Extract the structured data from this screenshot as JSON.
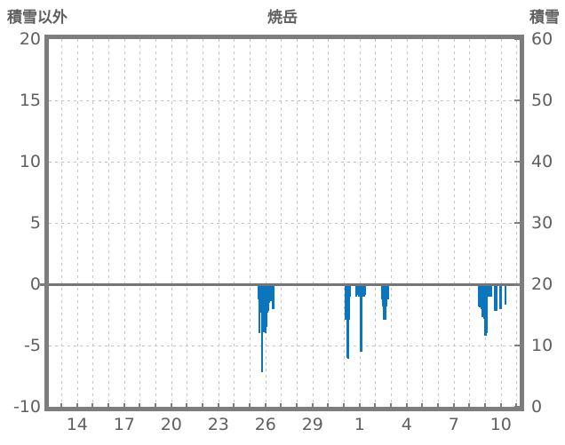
{
  "header": {
    "left_axis_title": "積雪以外",
    "title": "焼岳",
    "right_axis_title": "積雪"
  },
  "colors": {
    "bar": "#0b76be",
    "frame": "#7d7d7d",
    "zero_line": "#757575",
    "grid": "#c4c4c4",
    "text": "#5f5f5f",
    "background": "#ffffff"
  },
  "chart_data": {
    "type": "bar",
    "title": "焼岳",
    "left_axis": {
      "label": "積雪以外",
      "tick_labels": [
        "20",
        "15",
        "10",
        "5",
        "0",
        "-5",
        "-10"
      ],
      "tick_values": [
        20,
        15,
        10,
        5,
        0,
        -5,
        -10
      ],
      "range": [
        -10,
        20
      ]
    },
    "right_axis": {
      "label": "積雪",
      "tick_labels": [
        "60",
        "50",
        "40",
        "30",
        "20",
        "10",
        "0"
      ],
      "tick_values": [
        60,
        50,
        40,
        30,
        20,
        10,
        0
      ],
      "range": [
        0,
        60
      ]
    },
    "x_axis": {
      "tick_labels": [
        "14",
        "17",
        "20",
        "23",
        "26",
        "29",
        "1",
        "4",
        "7",
        "10"
      ],
      "tick_positions_day": [
        14,
        17,
        20,
        23,
        26,
        29,
        32,
        35,
        38,
        41
      ],
      "window_days": [
        12.2,
        42.2
      ],
      "gridlines": "daily",
      "x_unit": "day index (32 = day 1 of following month)"
    },
    "grid": "dashed",
    "legend": "none",
    "zero_line": true,
    "series": [
      {
        "name": "積雪以外",
        "color": "#0b76be",
        "points": [
          [
            25.55,
            -1.2
          ],
          [
            25.61,
            -4.0
          ],
          [
            25.67,
            -2.2
          ],
          [
            25.73,
            -2.3
          ],
          [
            25.78,
            -7.2
          ],
          [
            25.84,
            -2.3
          ],
          [
            25.9,
            -3.9
          ],
          [
            25.96,
            -2.4
          ],
          [
            26.02,
            -4.0
          ],
          [
            26.08,
            -3.5
          ],
          [
            26.14,
            -2.3
          ],
          [
            26.2,
            -2.2
          ],
          [
            26.26,
            -1.5
          ],
          [
            26.32,
            -1.4
          ],
          [
            26.45,
            -2.0
          ],
          [
            26.5,
            -2.0
          ],
          [
            31.1,
            -2.9
          ],
          [
            31.16,
            -2.9
          ],
          [
            31.22,
            -6.0
          ],
          [
            31.28,
            -6.1
          ],
          [
            31.34,
            -2.9
          ],
          [
            31.4,
            -1.0
          ],
          [
            31.78,
            -1.0
          ],
          [
            31.84,
            -0.9
          ],
          [
            31.97,
            -1.0
          ],
          [
            32.03,
            -1.0
          ],
          [
            32.1,
            -5.5
          ],
          [
            32.16,
            -1.0
          ],
          [
            32.28,
            -1.0
          ],
          [
            32.34,
            -0.9
          ],
          [
            33.45,
            -1.2
          ],
          [
            33.51,
            -1.8
          ],
          [
            33.57,
            -2.9
          ],
          [
            33.63,
            -2.9
          ],
          [
            33.69,
            -1.8
          ],
          [
            33.75,
            -1.2
          ],
          [
            33.81,
            -1.2
          ],
          [
            39.59,
            -1.8
          ],
          [
            39.65,
            -1.9
          ],
          [
            39.71,
            -1.9
          ],
          [
            39.77,
            -2.0
          ],
          [
            39.83,
            -2.7
          ],
          [
            39.89,
            -2.0
          ],
          [
            39.95,
            -2.8
          ],
          [
            40.02,
            -4.2
          ],
          [
            40.08,
            -4.0
          ],
          [
            40.25,
            -1.0
          ],
          [
            40.31,
            -1.0
          ],
          [
            40.38,
            -1.0
          ],
          [
            40.62,
            -2.2
          ],
          [
            40.68,
            -2.2
          ],
          [
            40.74,
            -2.2
          ],
          [
            40.96,
            -2.0
          ],
          [
            41.02,
            -2.0
          ],
          [
            41.3,
            -1.7
          ]
        ]
      }
    ]
  }
}
